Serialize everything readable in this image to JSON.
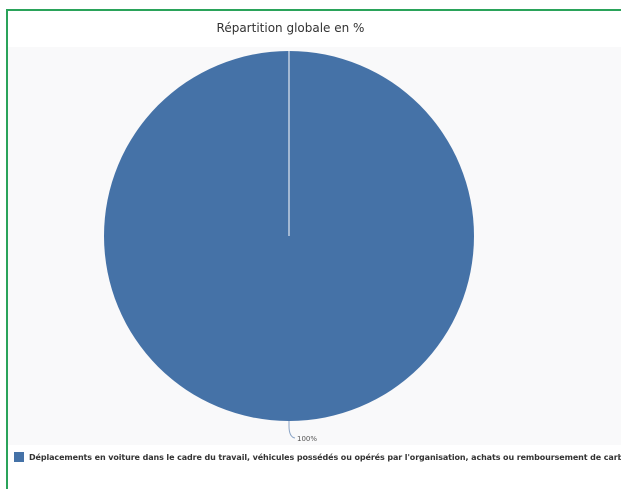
{
  "chart_data": {
    "type": "pie",
    "title": "Répartition globale en %",
    "slices": [
      {
        "label": "Déplacements en voiture dans le cadre du travail, véhicules possédés ou opérés par l'organisation, achats ou remboursement de carburants",
        "value": 100,
        "data_label": "100%",
        "color": "#4572a7"
      }
    ],
    "legend": "bottom-left"
  }
}
